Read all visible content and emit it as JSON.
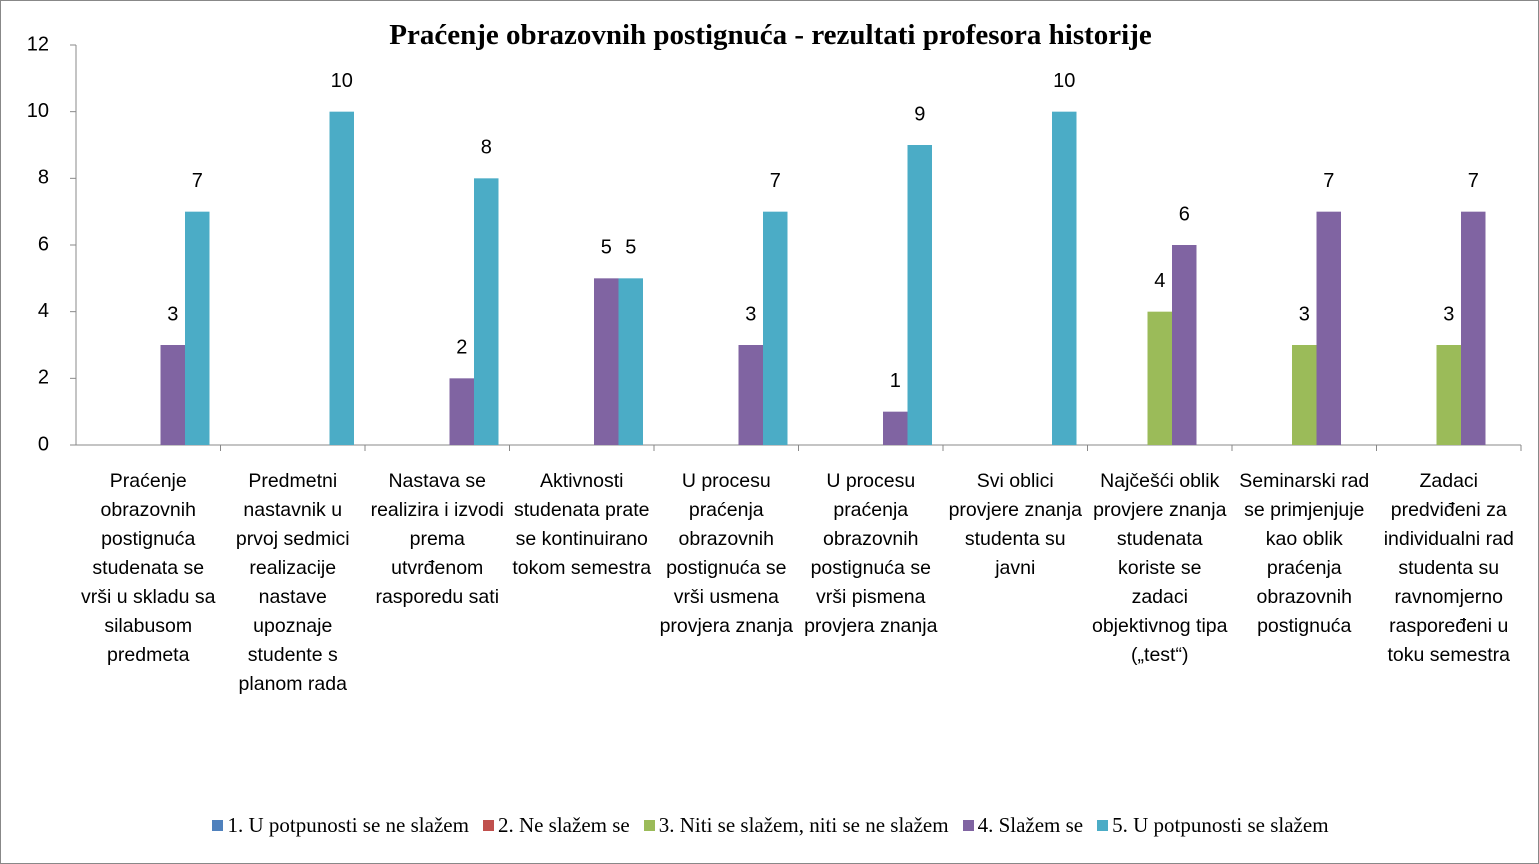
{
  "chart_data": {
    "type": "bar",
    "title": "Praćenje obrazovnih postignuća - rezultati profesora historije",
    "categories": [
      "Praćenje obrazovnih postignuća studenata se vrši u skladu sa silabusom predmeta",
      "Predmetni nastavnik u prvoj sedmici realizacije nastave upoznaje studente s planom rada",
      "Nastava se realizira i izvodi prema utvrđenom rasporedu sati",
      "Aktivnosti studenata prate se kontinuirano tokom semestra",
      "U procesu praćenja obrazovnih postignuća se vrši usmena provjera znanja",
      "U procesu praćenja obrazovnih postignuća se vrši pismena provjera znanja",
      "Svi oblici provjere znanja studenta su javni",
      "Najčešći oblik provjere znanja studenata koriste se zadaci objektivnog tipa („test“)",
      "Seminarski rad se primjenjuje kao oblik praćenja obrazovnih postignuća",
      "Zadaci predviđeni za individualni rad studenta su ravnomjerno raspoređeni u toku semestra"
    ],
    "series": [
      {
        "name": "1. U potpunosti se ne slažem",
        "color": "#4f81bd",
        "values": [
          null,
          null,
          null,
          null,
          null,
          null,
          null,
          null,
          null,
          null
        ]
      },
      {
        "name": "2. Ne slažem se",
        "color": "#c0504d",
        "values": [
          null,
          null,
          null,
          null,
          null,
          null,
          null,
          null,
          null,
          null
        ]
      },
      {
        "name": "3. Niti se slažem, niti se ne slažem",
        "color": "#9bbb59",
        "values": [
          null,
          null,
          null,
          null,
          null,
          null,
          null,
          4,
          3,
          3
        ]
      },
      {
        "name": "4. Slažem se",
        "color": "#8064a2",
        "values": [
          3,
          null,
          2,
          5,
          3,
          1,
          null,
          6,
          7,
          7
        ]
      },
      {
        "name": "5. U potpunosti se slažem",
        "color": "#4bacc6",
        "values": [
          7,
          10,
          8,
          5,
          7,
          9,
          10,
          null,
          null,
          null
        ]
      }
    ],
    "ylim": [
      0,
      12
    ],
    "yticks": [
      0,
      2,
      4,
      6,
      8,
      10,
      12
    ],
    "grid": false,
    "legend": "bottom"
  }
}
